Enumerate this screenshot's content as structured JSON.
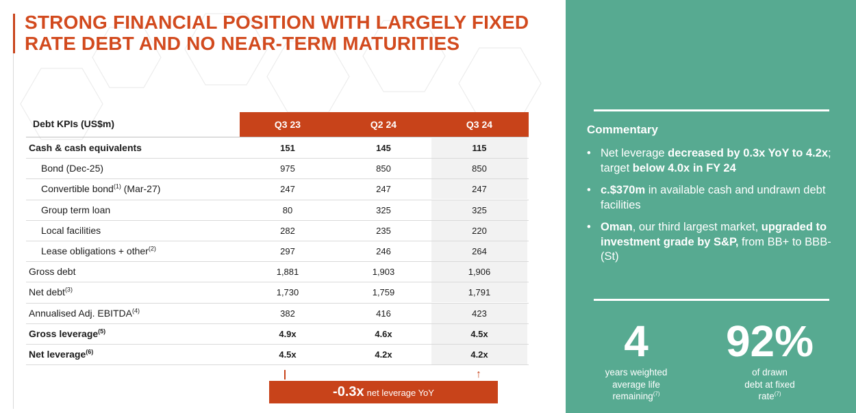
{
  "title": "STRONG FINANCIAL POSITION WITH LARGELY FIXED RATE DEBT AND NO NEAR-TERM MATURITIES",
  "table": {
    "header_label": "Debt KPIs (US$m)",
    "columns": [
      "Q3 23",
      "Q2 24",
      "Q3 24"
    ],
    "rows": [
      {
        "label": "Cash & cash equivalents",
        "note": "",
        "values": [
          "151",
          "145",
          "115"
        ],
        "bold": true,
        "indent": false
      },
      {
        "label": "Bond (Dec-25)",
        "note": "",
        "values": [
          "975",
          "850",
          "850"
        ],
        "bold": false,
        "indent": true
      },
      {
        "label": "Convertible bond",
        "note": "(1)",
        "suffix": " (Mar-27)",
        "values": [
          "247",
          "247",
          "247"
        ],
        "bold": false,
        "indent": true
      },
      {
        "label": "Group term loan",
        "note": "",
        "values": [
          "80",
          "325",
          "325"
        ],
        "bold": false,
        "indent": true
      },
      {
        "label": "Local facilities",
        "note": "",
        "values": [
          "282",
          "235",
          "220"
        ],
        "bold": false,
        "indent": true
      },
      {
        "label": "Lease obligations + other",
        "note": "(2)",
        "values": [
          "297",
          "246",
          "264"
        ],
        "bold": false,
        "indent": true
      },
      {
        "label": "Gross debt",
        "note": "",
        "values": [
          "1,881",
          "1,903",
          "1,906"
        ],
        "bold": false,
        "indent": false
      },
      {
        "label": "Net debt",
        "note": "(3)",
        "values": [
          "1,730",
          "1,759",
          "1,791"
        ],
        "bold": false,
        "indent": false
      },
      {
        "label": "Annualised Adj. EBITDA",
        "note": "(4)",
        "values": [
          "382",
          "416",
          "423"
        ],
        "bold": false,
        "indent": false
      },
      {
        "label": "Gross leverage",
        "note": "(5)",
        "values": [
          "4.9x",
          "4.6x",
          "4.5x"
        ],
        "bold": true,
        "indent": false
      },
      {
        "label": "Net leverage",
        "note": "(6)",
        "values": [
          "4.5x",
          "4.2x",
          "4.2x"
        ],
        "bold": true,
        "indent": false
      }
    ]
  },
  "delta": {
    "arrow": "↑",
    "value": "-0.3x",
    "label": "net leverage YoY"
  },
  "commentary": {
    "title": "Commentary",
    "bullets": [
      [
        {
          "t": "Net leverage ",
          "b": false
        },
        {
          "t": "decreased by 0.3x YoY to 4.2x",
          "b": true
        },
        {
          "t": "; target ",
          "b": false
        },
        {
          "t": "below 4.0x in FY 24",
          "b": true
        }
      ],
      [
        {
          "t": "c.$370m",
          "b": true
        },
        {
          "t": " in available cash and undrawn debt facilities",
          "b": false
        }
      ],
      [
        {
          "t": "Oman",
          "b": true
        },
        {
          "t": ", our third largest market, ",
          "b": false
        },
        {
          "t": "upgraded to investment grade by S&P,",
          "b": true
        },
        {
          "t": "  from BB+ to BBB- (St)",
          "b": false
        }
      ]
    ]
  },
  "stats": [
    {
      "value": "4",
      "caption": "years weighted average life remaining",
      "note": "(7)"
    },
    {
      "value": "92%",
      "caption": "of drawn debt at fixed rate",
      "note": "(7)"
    }
  ],
  "colors": {
    "accent": "#c8431a",
    "title": "#d24a1e",
    "panel": "#57aa91"
  }
}
